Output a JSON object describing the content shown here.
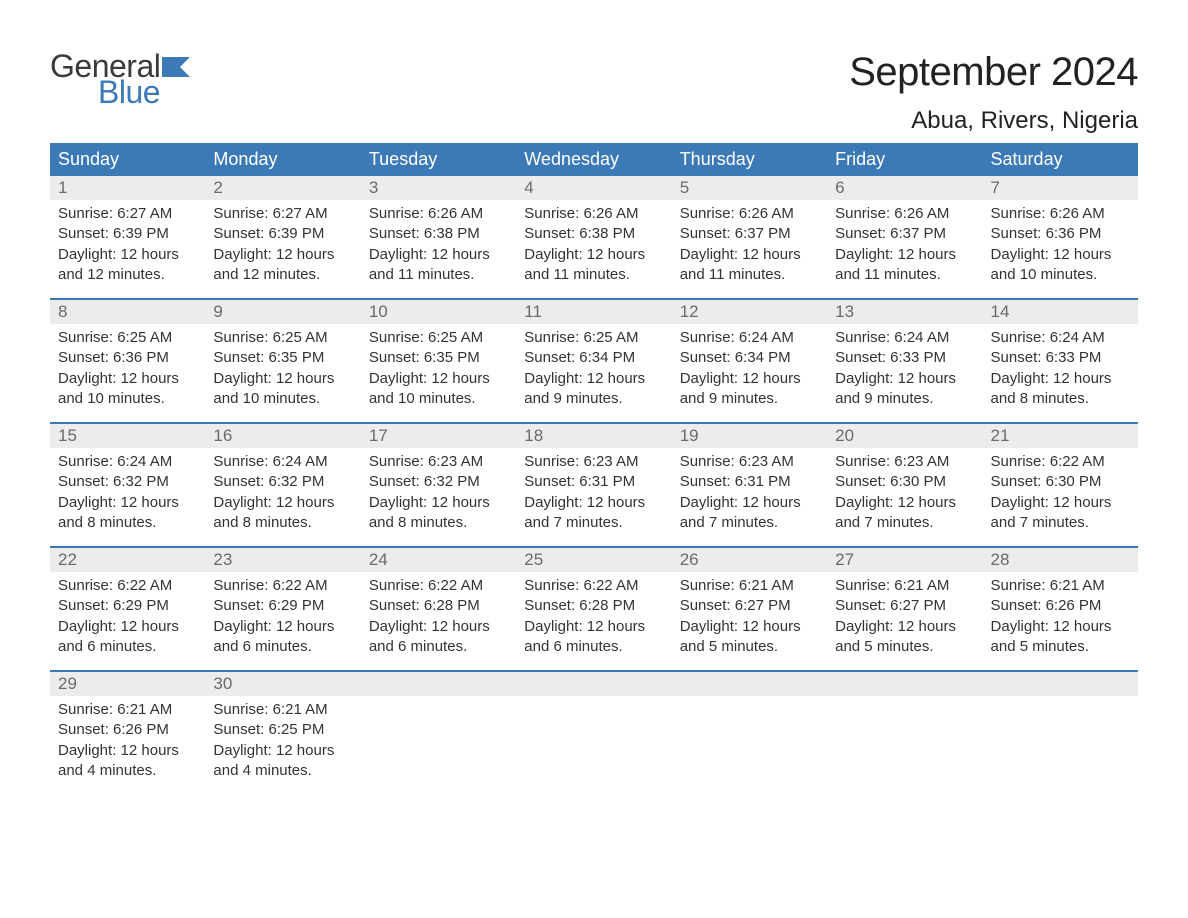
{
  "brand": {
    "line1": "General",
    "line2": "Blue",
    "text_color": "#3a3a3a",
    "accent_color": "#3b79b7"
  },
  "title": "September 2024",
  "location": "Abua, Rivers, Nigeria",
  "colors": {
    "header_bg": "#3b79b7",
    "header_text": "#ffffff",
    "daynum_bg": "#ececec",
    "daynum_text": "#6a6a6a",
    "body_text": "#333333",
    "week_divider": "#3b79b7",
    "page_bg": "#ffffff"
  },
  "typography": {
    "month_title_fontsize": 40,
    "location_fontsize": 24,
    "header_fontsize": 18,
    "daynum_fontsize": 17,
    "body_fontsize": 15
  },
  "columns": [
    "Sunday",
    "Monday",
    "Tuesday",
    "Wednesday",
    "Thursday",
    "Friday",
    "Saturday"
  ],
  "days": [
    {
      "n": 1,
      "sunrise": "6:27 AM",
      "sunset": "6:39 PM",
      "daylight": "12 hours and 12 minutes."
    },
    {
      "n": 2,
      "sunrise": "6:27 AM",
      "sunset": "6:39 PM",
      "daylight": "12 hours and 12 minutes."
    },
    {
      "n": 3,
      "sunrise": "6:26 AM",
      "sunset": "6:38 PM",
      "daylight": "12 hours and 11 minutes."
    },
    {
      "n": 4,
      "sunrise": "6:26 AM",
      "sunset": "6:38 PM",
      "daylight": "12 hours and 11 minutes."
    },
    {
      "n": 5,
      "sunrise": "6:26 AM",
      "sunset": "6:37 PM",
      "daylight": "12 hours and 11 minutes."
    },
    {
      "n": 6,
      "sunrise": "6:26 AM",
      "sunset": "6:37 PM",
      "daylight": "12 hours and 11 minutes."
    },
    {
      "n": 7,
      "sunrise": "6:26 AM",
      "sunset": "6:36 PM",
      "daylight": "12 hours and 10 minutes."
    },
    {
      "n": 8,
      "sunrise": "6:25 AM",
      "sunset": "6:36 PM",
      "daylight": "12 hours and 10 minutes."
    },
    {
      "n": 9,
      "sunrise": "6:25 AM",
      "sunset": "6:35 PM",
      "daylight": "12 hours and 10 minutes."
    },
    {
      "n": 10,
      "sunrise": "6:25 AM",
      "sunset": "6:35 PM",
      "daylight": "12 hours and 10 minutes."
    },
    {
      "n": 11,
      "sunrise": "6:25 AM",
      "sunset": "6:34 PM",
      "daylight": "12 hours and 9 minutes."
    },
    {
      "n": 12,
      "sunrise": "6:24 AM",
      "sunset": "6:34 PM",
      "daylight": "12 hours and 9 minutes."
    },
    {
      "n": 13,
      "sunrise": "6:24 AM",
      "sunset": "6:33 PM",
      "daylight": "12 hours and 9 minutes."
    },
    {
      "n": 14,
      "sunrise": "6:24 AM",
      "sunset": "6:33 PM",
      "daylight": "12 hours and 8 minutes."
    },
    {
      "n": 15,
      "sunrise": "6:24 AM",
      "sunset": "6:32 PM",
      "daylight": "12 hours and 8 minutes."
    },
    {
      "n": 16,
      "sunrise": "6:24 AM",
      "sunset": "6:32 PM",
      "daylight": "12 hours and 8 minutes."
    },
    {
      "n": 17,
      "sunrise": "6:23 AM",
      "sunset": "6:32 PM",
      "daylight": "12 hours and 8 minutes."
    },
    {
      "n": 18,
      "sunrise": "6:23 AM",
      "sunset": "6:31 PM",
      "daylight": "12 hours and 7 minutes."
    },
    {
      "n": 19,
      "sunrise": "6:23 AM",
      "sunset": "6:31 PM",
      "daylight": "12 hours and 7 minutes."
    },
    {
      "n": 20,
      "sunrise": "6:23 AM",
      "sunset": "6:30 PM",
      "daylight": "12 hours and 7 minutes."
    },
    {
      "n": 21,
      "sunrise": "6:22 AM",
      "sunset": "6:30 PM",
      "daylight": "12 hours and 7 minutes."
    },
    {
      "n": 22,
      "sunrise": "6:22 AM",
      "sunset": "6:29 PM",
      "daylight": "12 hours and 6 minutes."
    },
    {
      "n": 23,
      "sunrise": "6:22 AM",
      "sunset": "6:29 PM",
      "daylight": "12 hours and 6 minutes."
    },
    {
      "n": 24,
      "sunrise": "6:22 AM",
      "sunset": "6:28 PM",
      "daylight": "12 hours and 6 minutes."
    },
    {
      "n": 25,
      "sunrise": "6:22 AM",
      "sunset": "6:28 PM",
      "daylight": "12 hours and 6 minutes."
    },
    {
      "n": 26,
      "sunrise": "6:21 AM",
      "sunset": "6:27 PM",
      "daylight": "12 hours and 5 minutes."
    },
    {
      "n": 27,
      "sunrise": "6:21 AM",
      "sunset": "6:27 PM",
      "daylight": "12 hours and 5 minutes."
    },
    {
      "n": 28,
      "sunrise": "6:21 AM",
      "sunset": "6:26 PM",
      "daylight": "12 hours and 5 minutes."
    },
    {
      "n": 29,
      "sunrise": "6:21 AM",
      "sunset": "6:26 PM",
      "daylight": "12 hours and 4 minutes."
    },
    {
      "n": 30,
      "sunrise": "6:21 AM",
      "sunset": "6:25 PM",
      "daylight": "12 hours and 4 minutes."
    }
  ],
  "labels": {
    "sunrise_prefix": "Sunrise: ",
    "sunset_prefix": "Sunset: ",
    "daylight_prefix": "Daylight: "
  },
  "layout": {
    "start_weekday_index": 0,
    "total_cells": 35,
    "cols": 7
  }
}
